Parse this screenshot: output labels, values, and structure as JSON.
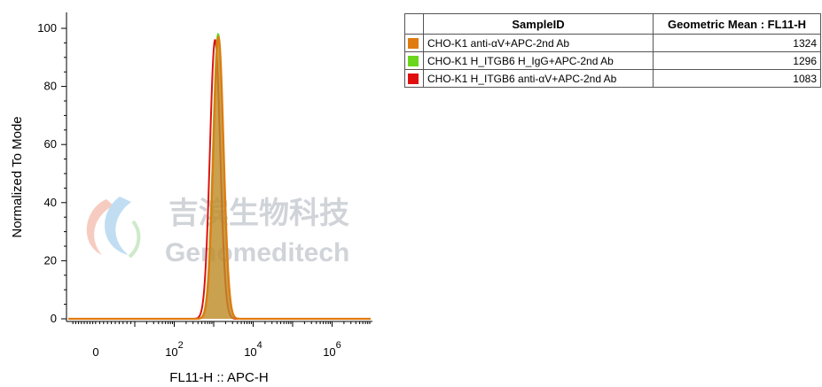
{
  "chart_data": {
    "type": "area",
    "title": "",
    "xlabel": "FL11-H :: APC-H",
    "ylabel": "Normalized To Mode",
    "x_scale": "biexponential",
    "ylim": [
      0,
      100
    ],
    "y_ticks": [
      "0",
      "20",
      "40",
      "60",
      "80",
      "100"
    ],
    "x_ticks": [
      {
        "base": "0",
        "exp": ""
      },
      {
        "base": "10",
        "exp": "2"
      },
      {
        "base": "10",
        "exp": "4"
      },
      {
        "base": "10",
        "exp": "6"
      }
    ],
    "series": [
      {
        "name": "CHO-K1 anti-αV+APC-2nd Ab",
        "color": "#e07b10",
        "geometric_mean": "1324",
        "peak_x": 1324,
        "peak_y": 97
      },
      {
        "name": "CHO-K1 H_ITGB6 H_IgG+APC-2nd Ab",
        "color": "#6ad61e",
        "geometric_mean": "1296",
        "peak_x": 1296,
        "peak_y": 98
      },
      {
        "name": "CHO-K1 H_ITGB6 anti-αV+APC-2nd Ab",
        "color": "#e01010",
        "geometric_mean": "1083",
        "peak_x": 1083,
        "peak_y": 96
      }
    ]
  },
  "legend_table": {
    "header_sample": "SampleID",
    "header_mean": "Geometric Mean : FL11-H"
  },
  "watermark": {
    "chinese": "吉滨生物科技",
    "english": "Genomeditech"
  }
}
